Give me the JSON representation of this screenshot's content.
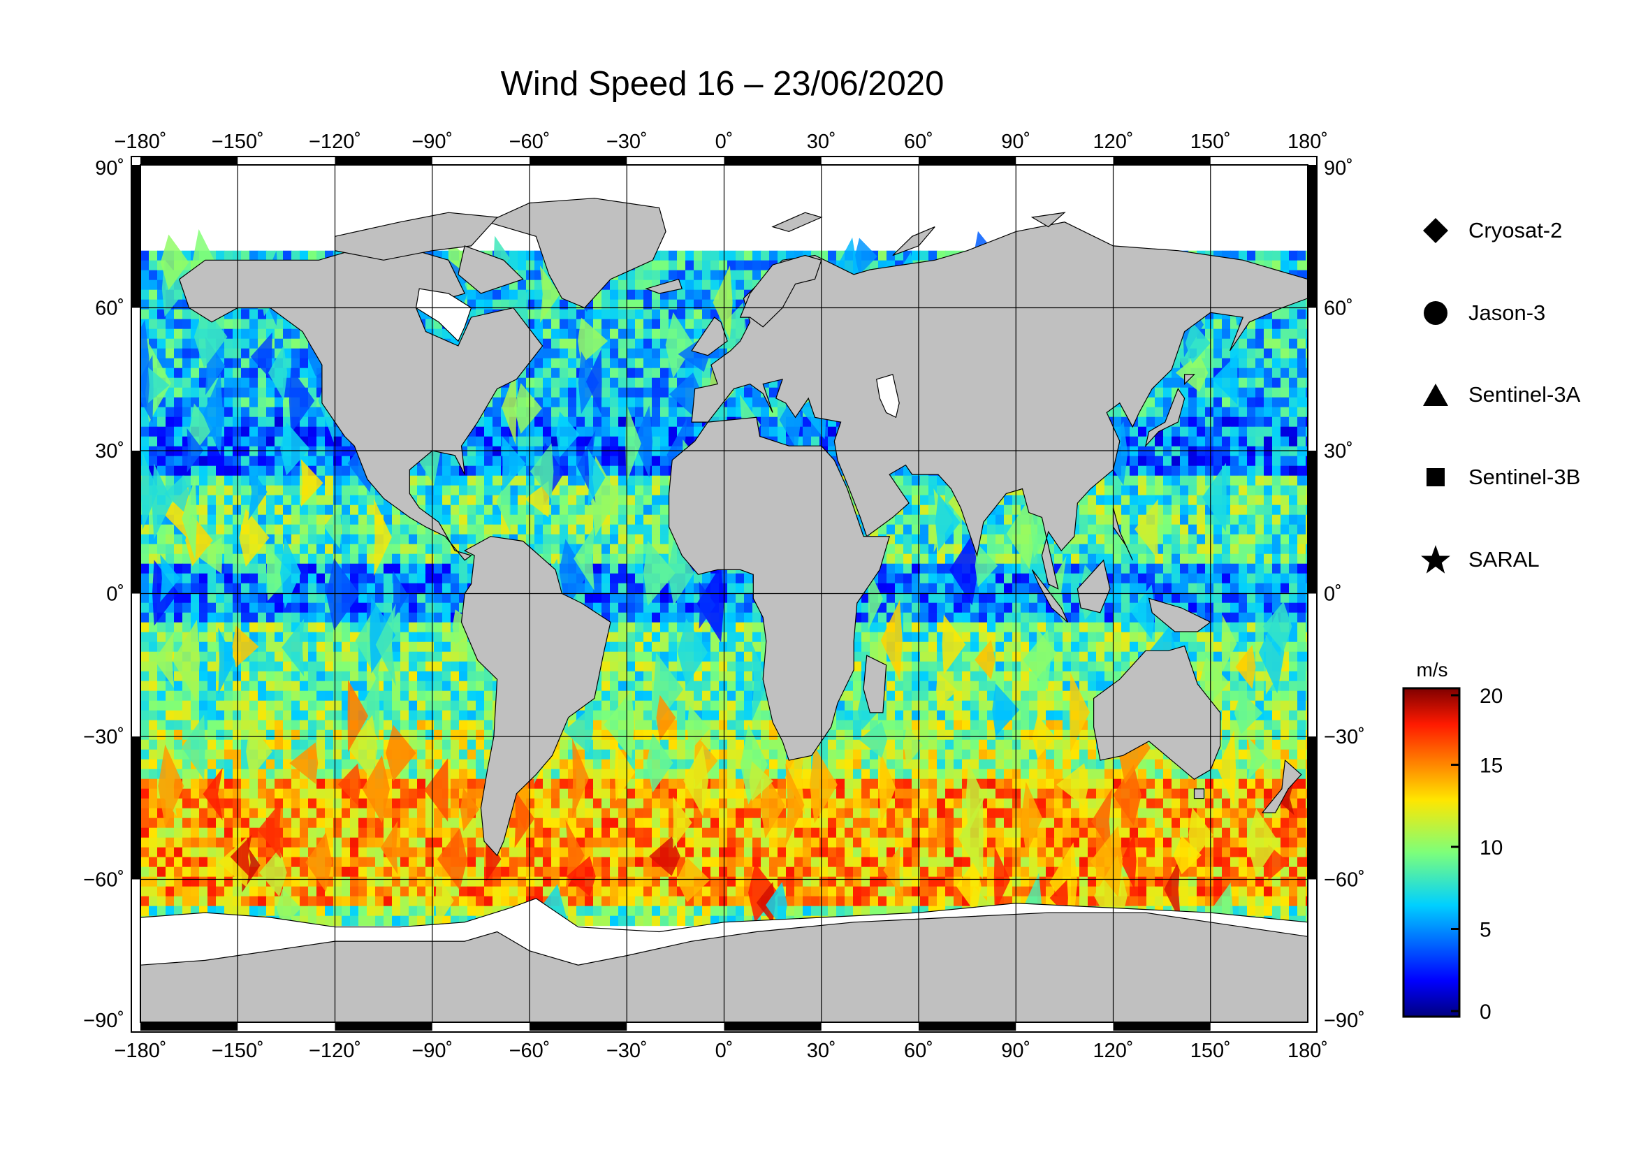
{
  "title": "Wind Speed 16 – 23/06/2020",
  "map": {
    "lon_ticks": [
      "−180˚",
      "−150˚",
      "−120˚",
      "−90˚",
      "−60˚",
      "−30˚",
      "0˚",
      "30˚",
      "60˚",
      "90˚",
      "120˚",
      "150˚",
      "180˚"
    ],
    "lat_ticks": [
      "90˚",
      "60˚",
      "30˚",
      "0˚",
      "−30˚",
      "−60˚",
      "−90˚"
    ],
    "lat_ticks_right": [
      "90˚",
      "60˚",
      "30˚",
      "0˚",
      "−30˚",
      "−60˚",
      "−90˚"
    ],
    "lon_range": [
      -180,
      180
    ],
    "lat_range": [
      -90,
      90
    ],
    "grid": true,
    "land_color": "#c0c0c0",
    "ice_color": "#ffffff",
    "ocean_band_colors": [
      "#0a30e0",
      "#1aa8f0",
      "#2ee8d8",
      "#8cf070",
      "#f0e83a",
      "#f8a020",
      "#e84010"
    ]
  },
  "legend": {
    "items": [
      {
        "label": "Cryosat-2",
        "icon": "diamond-icon"
      },
      {
        "label": "Jason-3",
        "icon": "circle-icon"
      },
      {
        "label": "Sentinel-3A",
        "icon": "triangle-icon"
      },
      {
        "label": "Sentinel-3B",
        "icon": "square-icon"
      },
      {
        "label": "SARAL",
        "icon": "star-icon"
      }
    ]
  },
  "colorbar": {
    "unit": "m/s",
    "ticks": [
      "20",
      "15",
      "10",
      "5",
      "0"
    ],
    "range": [
      0,
      20
    ],
    "colormap": "jet"
  }
}
